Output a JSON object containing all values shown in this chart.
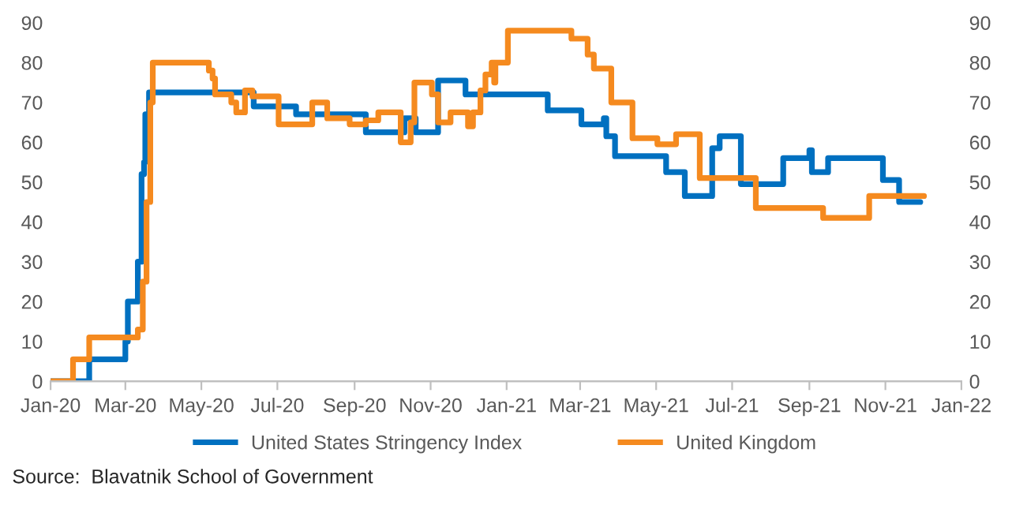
{
  "chart_data": {
    "type": "step",
    "xlim": [
      "2020-01-01",
      "2022-01-01"
    ],
    "xticks": [
      {
        "value": "2020-01-01",
        "label": "Jan-20"
      },
      {
        "value": "2020-03-01",
        "label": "Mar-20"
      },
      {
        "value": "2020-05-01",
        "label": "May-20"
      },
      {
        "value": "2020-07-01",
        "label": "Jul-20"
      },
      {
        "value": "2020-09-01",
        "label": "Sep-20"
      },
      {
        "value": "2020-11-01",
        "label": "Nov-20"
      },
      {
        "value": "2021-01-01",
        "label": "Jan-21"
      },
      {
        "value": "2021-03-01",
        "label": "Mar-21"
      },
      {
        "value": "2021-05-01",
        "label": "May-21"
      },
      {
        "value": "2021-07-01",
        "label": "Jul-21"
      },
      {
        "value": "2021-09-01",
        "label": "Sep-21"
      },
      {
        "value": "2021-11-01",
        "label": "Nov-21"
      },
      {
        "value": "2022-01-01",
        "label": "Jan-22"
      }
    ],
    "ylim": [
      0,
      90
    ],
    "yticks": [
      0,
      10,
      20,
      30,
      40,
      50,
      60,
      70,
      80,
      90
    ],
    "y2lim": [
      0,
      90
    ],
    "y2ticks": [
      0,
      10,
      20,
      30,
      40,
      50,
      60,
      70,
      80,
      90
    ],
    "grid": false,
    "legend": "bottom",
    "marker": "none",
    "line_style": "solid",
    "annotations": [
      "Source:  Blavatnik School of Government"
    ],
    "series": [
      {
        "name": "United States Stringency Index",
        "color": "#0070c0",
        "x": [
          "2020-01-01",
          "2020-02-01",
          "2020-03-01",
          "2020-03-03",
          "2020-03-11",
          "2020-03-14",
          "2020-03-16",
          "2020-03-17",
          "2020-03-20",
          "2020-06-12",
          "2020-07-16",
          "2020-09-10",
          "2020-10-11",
          "2020-10-20",
          "2020-11-07",
          "2020-11-29",
          "2021-02-03",
          "2021-03-02",
          "2021-03-20",
          "2021-03-22",
          "2021-03-29",
          "2021-05-09",
          "2021-05-24",
          "2021-06-15",
          "2021-06-21",
          "2021-07-08",
          "2021-08-11",
          "2021-09-01",
          "2021-09-03",
          "2021-09-16",
          "2021-10-30",
          "2021-11-12",
          "2021-11-29"
        ],
        "values": [
          0,
          5.5,
          10,
          20,
          30,
          52,
          55,
          67,
          72.5,
          69,
          67,
          62.5,
          66,
          62.5,
          75.5,
          72,
          68,
          64.5,
          66,
          61.5,
          56.5,
          52.5,
          46.5,
          58.5,
          61.5,
          49.5,
          56,
          58,
          52.5,
          56,
          50.5,
          45,
          45
        ]
      },
      {
        "name": "United Kingdom",
        "color": "#f58a1f",
        "x": [
          "2020-01-01",
          "2020-01-19",
          "2020-02-01",
          "2020-03-11",
          "2020-03-15",
          "2020-03-18",
          "2020-03-21",
          "2020-03-23",
          "2020-05-07",
          "2020-05-10",
          "2020-05-12",
          "2020-05-25",
          "2020-05-29",
          "2020-06-05",
          "2020-06-11",
          "2020-07-02",
          "2020-07-29",
          "2020-08-10",
          "2020-08-28",
          "2020-09-10",
          "2020-09-20",
          "2020-10-08",
          "2020-10-16",
          "2020-10-19",
          "2020-11-02",
          "2020-11-07",
          "2020-11-17",
          "2020-12-01",
          "2020-12-05",
          "2020-12-11",
          "2020-12-15",
          "2020-12-20",
          "2020-12-22",
          "2020-12-23",
          "2021-01-02",
          "2021-02-22",
          "2021-03-07",
          "2021-03-12",
          "2021-03-26",
          "2021-04-12",
          "2021-05-02",
          "2021-05-17",
          "2021-06-05",
          "2021-07-20",
          "2021-09-12",
          "2021-10-19",
          "2021-12-02"
        ],
        "values": [
          0,
          5.5,
          11,
          13,
          25,
          45,
          70,
          80,
          78,
          76,
          72,
          70,
          67.5,
          73,
          71.5,
          64.5,
          70,
          66,
          64.5,
          65.5,
          67.5,
          60,
          65,
          75,
          72,
          65,
          67.5,
          64,
          67.5,
          73,
          77,
          80,
          75,
          80,
          88,
          86,
          82,
          78.5,
          70,
          61,
          59.5,
          62,
          51,
          43.5,
          41,
          46.5,
          46.5
        ]
      }
    ]
  }
}
